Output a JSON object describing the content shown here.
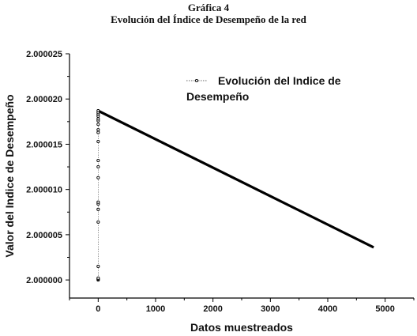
{
  "figure": {
    "number": "Gráfica 4",
    "title": "Evolución del Índice de Desempeño de la red"
  },
  "chart_data": {
    "type": "line",
    "title": "Evolución del Índice de Desempeño de la red",
    "xlabel": "Datos muestreados",
    "ylabel": "Valor del Indice de Desempeño",
    "xlim": [
      -500,
      5500
    ],
    "ylim": [
      1.999998,
      2.000025
    ],
    "x_ticks": [
      "0",
      "1000",
      "2000",
      "3000",
      "4000",
      "5000"
    ],
    "x_tick_values": [
      0,
      1000,
      2000,
      3000,
      4000,
      5000
    ],
    "y_ticks": [
      "2.000000",
      "2.000005",
      "2.000010",
      "2.000015",
      "2.000020",
      "2.000025"
    ],
    "y_tick_values": [
      2.0,
      2.000005,
      2.00001,
      2.000015,
      2.00002,
      2.000025
    ],
    "legend": {
      "placement": "top-right",
      "lines": [
        "Evolución del Indice de",
        "Desempeño"
      ]
    },
    "series": [
      {
        "name": "Evolución del Indice de Desempeño",
        "x": [
          0,
          0,
          0,
          0,
          0,
          0,
          0,
          0,
          0,
          0,
          0,
          0,
          0,
          0,
          0,
          0,
          0,
          0,
          0,
          0,
          0,
          4800
        ],
        "y": [
          2.0,
          2.0000001,
          2.0000002,
          2.0000015,
          2.0000064,
          2.0000078,
          2.0000084,
          2.0000086,
          2.0000113,
          2.0000125,
          2.0000132,
          2.0000153,
          2.0000163,
          2.0000166,
          2.0000172,
          2.0000176,
          2.0000178,
          2.0000181,
          2.0000183,
          2.0000185,
          2.0000187,
          2.0000036
        ]
      }
    ]
  }
}
